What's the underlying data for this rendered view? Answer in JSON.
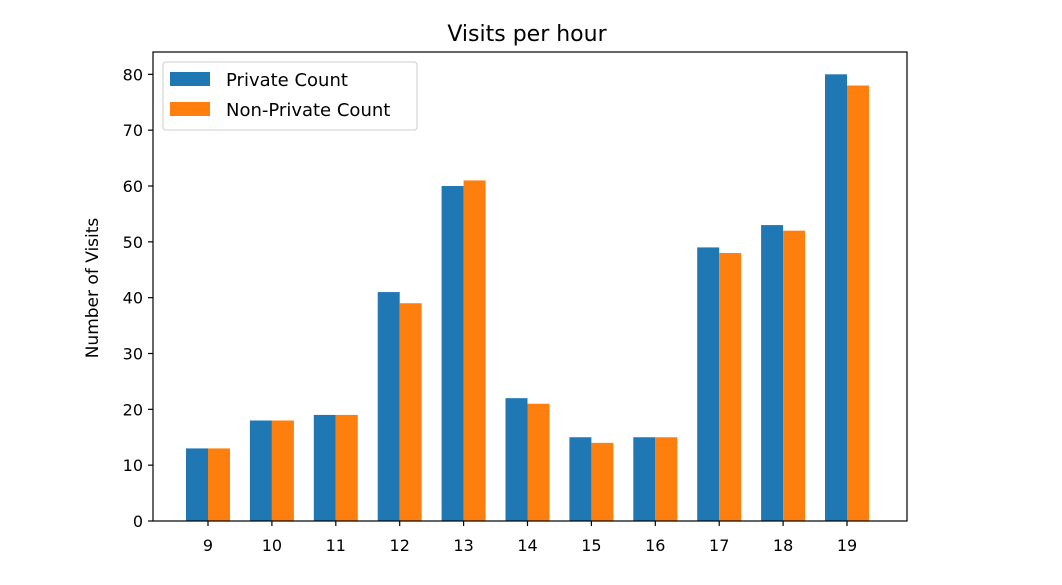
{
  "chart_data": {
    "type": "bar",
    "title": "Visits per hour",
    "xlabel": "",
    "ylabel": "Number of Visits",
    "categories": [
      "9",
      "10",
      "11",
      "12",
      "13",
      "14",
      "15",
      "16",
      "17",
      "18",
      "19"
    ],
    "series": [
      {
        "name": "Private Count",
        "color": "#1f77b4",
        "values": [
          13,
          18,
          19,
          41,
          60,
          22,
          15,
          15,
          49,
          53,
          80
        ]
      },
      {
        "name": "Non-Private Count",
        "color": "#ff7f0e",
        "values": [
          13,
          18,
          19,
          39,
          61,
          21,
          14,
          15,
          48,
          52,
          78
        ]
      }
    ],
    "ylim": [
      0,
      84
    ],
    "yticks": [
      0,
      10,
      20,
      30,
      40,
      50,
      60,
      70,
      80
    ],
    "grid": false,
    "legend_position": "top-left"
  }
}
